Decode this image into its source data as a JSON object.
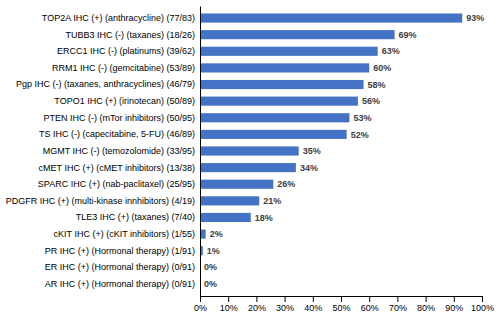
{
  "chart_data": {
    "type": "bar",
    "orientation": "horizontal",
    "categories": [
      "AR IHC (+) (Hormonal therapy) (0/91)",
      "ER IHC (+) (Hormonal therapy) (0/91)",
      "PR IHC (+) (Hormonal therapy) (1/91)",
      "cKIT IHC (+) (cKIT inhibitors) (1/55)",
      "TLE3 IHC (+) (taxanes) (7/40)",
      "PDGFR IHC (+) (multi-kinase innhibitors) (4/19)",
      "SPARC IHC (+) (nab-paclitaxel) (25/95)",
      "cMET IHC (+) (cMET inhibitors) (13/38)",
      "MGMT IHC (-) (temozolomide) (33/95)",
      "TS IHC (-) (capecitabine, 5-FU) (46/89)",
      "PTEN IHC (-) (mTor inhibitors) (50/95)",
      "TOPO1 IHC (+) (irinotecan) (50/89)",
      "Pgp IHC (-) (taxanes, anthracyclines) (46/79)",
      "RRM1 IHC (-) (gemcitabine) (53/89)",
      "ERCC1 IHC (-) (platinums) (39/62)",
      "TUBB3 IHC (-) (taxanes) (18/26)",
      "TOP2A IHC (+) (anthracycline) (77/83)"
    ],
    "values": [
      0,
      0,
      1,
      2,
      18,
      21,
      26,
      34,
      35,
      52,
      53,
      56,
      58,
      60,
      63,
      69,
      93
    ],
    "value_labels": [
      "0%",
      "0%",
      "1%",
      "2%",
      "18%",
      "21%",
      "26%",
      "34%",
      "35%",
      "52%",
      "53%",
      "56%",
      "58%",
      "60%",
      "63%",
      "69%",
      "93%"
    ],
    "data_labels": true,
    "color": "#4472c4",
    "xlim": [
      0,
      100
    ],
    "xticks": [
      {
        "value": 0,
        "label": "0%"
      },
      {
        "value": 10,
        "label": "10%"
      },
      {
        "value": 20,
        "label": "20%"
      },
      {
        "value": 30,
        "label": "30%"
      },
      {
        "value": 40,
        "label": "40%"
      },
      {
        "value": 50,
        "label": "50%"
      },
      {
        "value": 60,
        "label": "60%"
      },
      {
        "value": 70,
        "label": "70%"
      },
      {
        "value": 80,
        "label": "80%"
      },
      {
        "value": 90,
        "label": "90%"
      },
      {
        "value": 100,
        "label": "100%"
      }
    ],
    "grid": false
  }
}
